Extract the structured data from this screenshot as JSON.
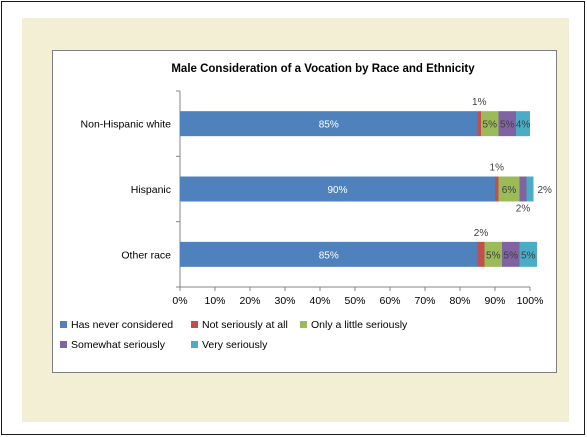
{
  "chart_data": {
    "type": "bar",
    "orientation": "horizontal",
    "stacked": "percent",
    "title": "Male Consideration of a Vocation by Race and Ethnicity",
    "categories": [
      "Non-Hispanic white",
      "Hispanic",
      "Other race"
    ],
    "series": [
      {
        "name": "Has never considered",
        "color": "#4f81bd",
        "values": [
          85,
          90,
          85
        ],
        "labels": [
          "85%",
          "90%",
          "85%"
        ]
      },
      {
        "name": "Not seriously at all",
        "color": "#c0504d",
        "values": [
          1,
          1,
          2
        ],
        "labels": [
          "1%",
          "1%",
          "2%"
        ]
      },
      {
        "name": "Only a little seriously",
        "color": "#9bbb59",
        "values": [
          5,
          6,
          5
        ],
        "labels": [
          "5%",
          "6%",
          "5%"
        ]
      },
      {
        "name": "Somewhat seriously",
        "color": "#8064a2",
        "values": [
          5,
          2,
          5
        ],
        "labels": [
          "5%",
          "2%",
          "5%"
        ]
      },
      {
        "name": "Very seriously",
        "color": "#4bacc6",
        "values": [
          4,
          2,
          5
        ],
        "labels": [
          "4%",
          "2%",
          "5%"
        ]
      }
    ],
    "x_ticks": [
      "0%",
      "10%",
      "20%",
      "30%",
      "40%",
      "50%",
      "60%",
      "70%",
      "80%",
      "90%",
      "100%"
    ],
    "xlim": [
      0,
      100
    ],
    "grid": false,
    "legend_position": "bottom",
    "background": "#f2efd5"
  }
}
